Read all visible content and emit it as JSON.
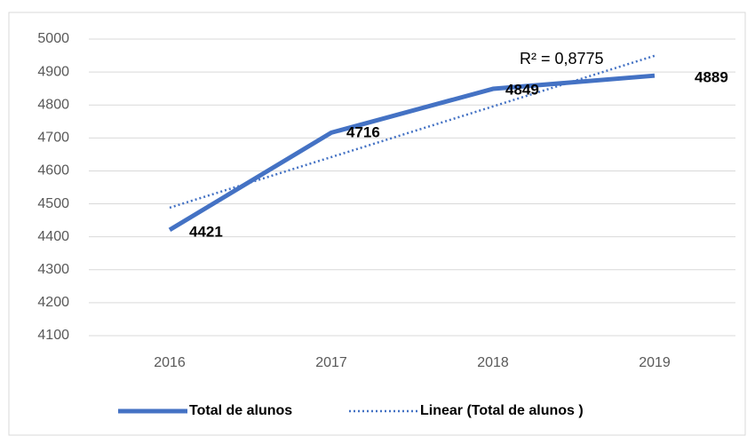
{
  "chart_data": {
    "type": "line",
    "categories": [
      "2016",
      "2017",
      "2018",
      "2019"
    ],
    "series": [
      {
        "name": "Total de alunos",
        "color": "#4472c4",
        "values": [
          4421,
          4716,
          4849,
          4889
        ]
      },
      {
        "name": "Linear (Total de alunos )",
        "color": "#4472c4",
        "values": [
          4488.2,
          4641.9,
          4795.6,
          4949.3
        ],
        "trendline": true
      }
    ],
    "annotation": "R² = 0,8775",
    "ylim": [
      4100,
      5000
    ],
    "yticks": [
      4100,
      4200,
      4300,
      4400,
      4500,
      4600,
      4700,
      4800,
      4900,
      5000
    ],
    "grid": true,
    "legend": "bottom"
  }
}
